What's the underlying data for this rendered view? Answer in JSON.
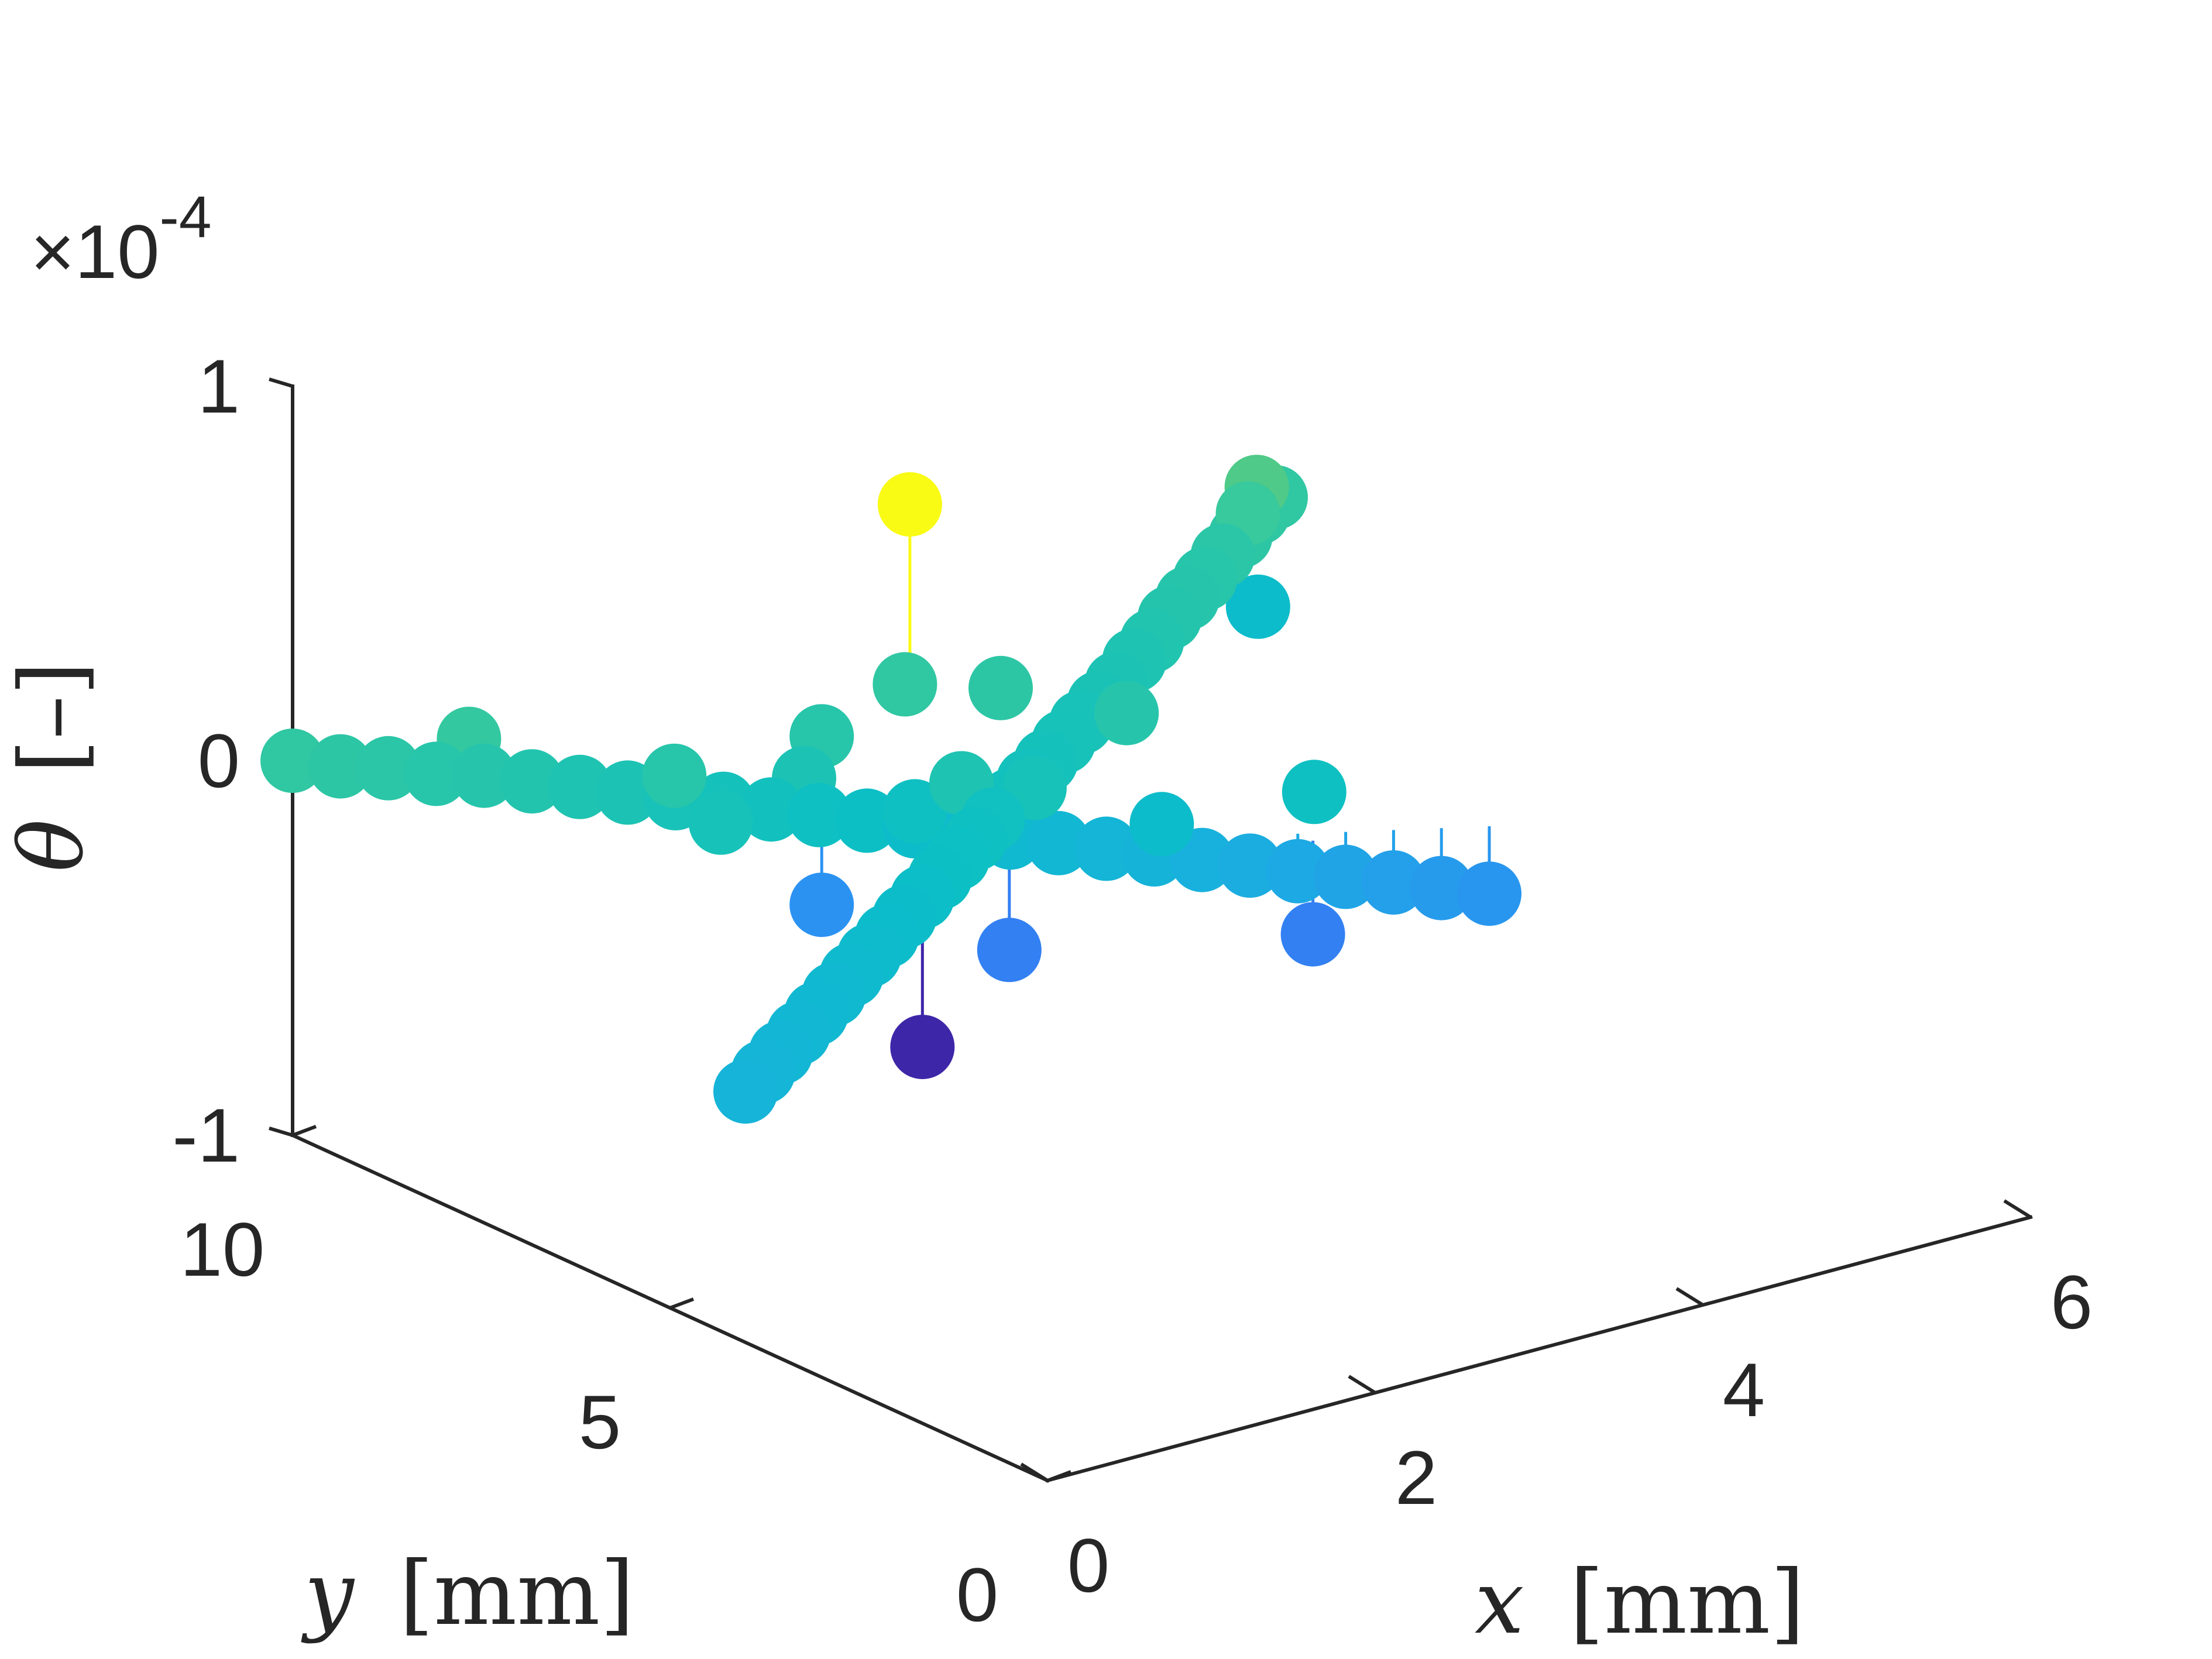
{
  "chart_data": {
    "type": "scatter",
    "variant": "3d-stem-scatter",
    "title": "",
    "xlabel_var": "x",
    "xlabel_unit": "[mm]",
    "ylabel_var": "y",
    "ylabel_unit": "[mm]",
    "zlabel_var": "θ",
    "zlabel_unit": "[–]",
    "xlim": [
      0,
      6
    ],
    "ylim": [
      0,
      10
    ],
    "zlim": [
      -1,
      1
    ],
    "z_multiplier": "×10",
    "z_multiplier_exp": "-4",
    "x_ticks": [
      "0",
      "2",
      "4",
      "6"
    ],
    "y_ticks": [
      "0",
      "5",
      "10"
    ],
    "z_ticks": [
      "-1",
      "0",
      "1"
    ],
    "colormap": [
      "#3e26a8",
      "#4456f0",
      "#2d8ff4",
      "#19b0de",
      "#0bbfc6",
      "#22c4ae",
      "#3ac99a",
      "#8ccd56",
      "#f9fb15"
    ],
    "clim": [
      -0.8,
      0.35
    ],
    "grid": false,
    "legend": "none",
    "points": [
      {
        "x": 6.0,
        "y": 10.0,
        "z": 0.0
      },
      {
        "x": 5.8,
        "y": 9.8,
        "z": 0.0
      },
      {
        "x": 5.6,
        "y": 9.6,
        "z": -0.02
      },
      {
        "x": 5.4,
        "y": 9.4,
        "z": -0.03
      },
      {
        "x": 5.2,
        "y": 9.2,
        "z": -0.05
      },
      {
        "x": 5.0,
        "y": 9.0,
        "z": -0.06
      },
      {
        "x": 4.8,
        "y": 8.8,
        "z": -0.07
      },
      {
        "x": 4.6,
        "y": 8.6,
        "z": -0.09
      },
      {
        "x": 4.4,
        "y": 8.4,
        "z": -0.1
      },
      {
        "x": 4.2,
        "y": 8.2,
        "z": -0.12
      },
      {
        "x": 4.0,
        "y": 8.0,
        "z": -0.13
      },
      {
        "x": 3.8,
        "y": 7.8,
        "z": -0.14
      },
      {
        "x": 3.6,
        "y": 7.6,
        "z": -0.15
      },
      {
        "x": 3.4,
        "y": 7.4,
        "z": -0.16
      },
      {
        "x": 3.2,
        "y": 7.2,
        "z": -0.17
      },
      {
        "x": 3.0,
        "y": 7.0,
        "z": -0.18
      },
      {
        "x": 2.8,
        "y": 6.8,
        "z": -0.19
      },
      {
        "x": 2.6,
        "y": 6.6,
        "z": -0.2
      },
      {
        "x": 2.4,
        "y": 6.4,
        "z": -0.21
      },
      {
        "x": 2.2,
        "y": 6.2,
        "z": -0.22
      },
      {
        "x": 2.0,
        "y": 6.0,
        "z": -0.23
      },
      {
        "x": 1.8,
        "y": 5.8,
        "z": -0.24
      },
      {
        "x": 1.6,
        "y": 5.6,
        "z": -0.25
      },
      {
        "x": 1.4,
        "y": 5.4,
        "z": -0.26
      },
      {
        "x": 1.2,
        "y": 5.2,
        "z": -0.27
      },
      {
        "x": 1.0,
        "y": 5.0,
        "z": -0.28
      },
      {
        "x": 0.8,
        "y": 4.8,
        "z": -0.29
      },
      {
        "x": 0.6,
        "y": 4.6,
        "z": -0.3
      },
      {
        "x": 0.4,
        "y": 4.4,
        "z": -0.31
      },
      {
        "x": 0.2,
        "y": 4.2,
        "z": -0.32
      },
      {
        "x": 0.0,
        "y": 4.0,
        "z": -0.33
      },
      {
        "x": 0.0,
        "y": 10.0,
        "z": 0.0
      },
      {
        "x": 0.2,
        "y": 9.8,
        "z": -0.02
      },
      {
        "x": 0.4,
        "y": 9.6,
        "z": -0.03
      },
      {
        "x": 0.6,
        "y": 9.4,
        "z": -0.05
      },
      {
        "x": 0.8,
        "y": 9.2,
        "z": -0.06
      },
      {
        "x": 1.0,
        "y": 9.0,
        "z": -0.08
      },
      {
        "x": 1.2,
        "y": 8.8,
        "z": -0.1
      },
      {
        "x": 1.4,
        "y": 8.6,
        "z": -0.12
      },
      {
        "x": 1.6,
        "y": 8.4,
        "z": -0.14
      },
      {
        "x": 1.8,
        "y": 8.2,
        "z": -0.16
      },
      {
        "x": 2.0,
        "y": 8.0,
        "z": -0.18
      },
      {
        "x": 2.2,
        "y": 7.8,
        "z": -0.2
      },
      {
        "x": 2.4,
        "y": 7.6,
        "z": -0.22
      },
      {
        "x": 2.6,
        "y": 7.4,
        "z": -0.24
      },
      {
        "x": 2.8,
        "y": 7.2,
        "z": -0.26
      },
      {
        "x": 3.0,
        "y": 7.0,
        "z": -0.28
      },
      {
        "x": 3.2,
        "y": 6.8,
        "z": -0.3
      },
      {
        "x": 3.4,
        "y": 6.6,
        "z": -0.32
      },
      {
        "x": 3.6,
        "y": 6.4,
        "z": -0.34
      },
      {
        "x": 3.8,
        "y": 6.2,
        "z": -0.36
      },
      {
        "x": 4.0,
        "y": 6.0,
        "z": -0.38
      },
      {
        "x": 4.2,
        "y": 5.8,
        "z": -0.4
      },
      {
        "x": 4.4,
        "y": 5.6,
        "z": -0.42
      },
      {
        "x": 4.6,
        "y": 5.4,
        "z": -0.44
      },
      {
        "x": 4.8,
        "y": 5.2,
        "z": -0.46
      },
      {
        "x": 5.0,
        "y": 5.0,
        "z": -0.48
      },
      {
        "x": 3.0,
        "y": 8.4,
        "z": 0.0
      },
      {
        "x": 3.4,
        "y": 8.0,
        "z": -0.02
      },
      {
        "x": 3.8,
        "y": 7.2,
        "z": -0.06
      },
      {
        "x": 2.2,
        "y": 8.0,
        "z": -0.12
      },
      {
        "x": 5.7,
        "y": 9.6,
        "z": 0.1
      },
      {
        "x": 5.6,
        "y": 9.5,
        "z": 0.05
      },
      {
        "x": 0.8,
        "y": 9.4,
        "z": 0.02
      },
      {
        "x": 1.5,
        "y": 8.2,
        "z": -0.05
      },
      {
        "x": 2.7,
        "y": 7.0,
        "z": -0.1
      },
      {
        "x": 4.3,
        "y": 5.8,
        "z": -0.2
      },
      {
        "x": 2.4,
        "y": 8.2,
        "z": -0.05
      },
      {
        "x": 1.6,
        "y": 7.8,
        "z": -0.15
      },
      {
        "x": 3.1,
        "y": 6.9,
        "z": -0.15
      },
      {
        "x": 3.6,
        "y": 6.3,
        "z": -0.25
      },
      {
        "x": 2.6,
        "y": 7.4,
        "z": -0.2
      },
      {
        "x": 2.8,
        "y": 7.9,
        "z": 0.55
      },
      {
        "x": 5.8,
        "y": 9.8,
        "z": -0.25
      },
      {
        "x": 4.2,
        "y": 5.6,
        "z": -0.55
      },
      {
        "x": 2.4,
        "y": 8.2,
        "z": -0.5
      },
      {
        "x": 2.9,
        "y": 6.8,
        "z": -0.55
      },
      {
        "x": 2.6,
        "y": 7.3,
        "z": -0.82
      }
    ]
  }
}
